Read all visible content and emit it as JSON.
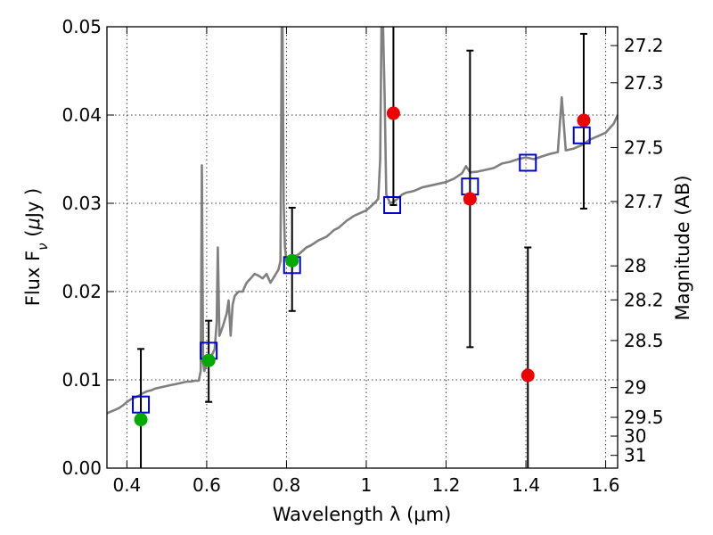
{
  "chart_data": {
    "type": "scatter",
    "title": "",
    "xlabel": "Wavelength  λ (μm)",
    "ylabel": "Flux  F",
    "ylabel_sub": "ν",
    "ylabel_unit_open": "  (",
    "ylabel_unit_mu": "μ",
    "ylabel_unit_close": "Jy )",
    "y2label": "Magnitude (AB)",
    "xlim": [
      0.35,
      1.63
    ],
    "ylim": [
      0.0,
      0.05
    ],
    "grid": true,
    "x_ticks": [
      0.4,
      0.6,
      0.8,
      1.0,
      1.2,
      1.4,
      1.6
    ],
    "x_tick_labels": [
      "0.4",
      "0.6",
      "0.8",
      "1",
      "1.2",
      "1.4",
      "1.6"
    ],
    "y_ticks": [
      0.0,
      0.01,
      0.02,
      0.03,
      0.04,
      0.05
    ],
    "y_tick_labels": [
      "0.00",
      "0.01",
      "0.02",
      "0.03",
      "0.04",
      "0.05"
    ],
    "y2_ticks": [
      27.2,
      27.3,
      27.5,
      27.7,
      28,
      28.2,
      28.5,
      29,
      29.5,
      30,
      31
    ],
    "y2_tick_labels": [
      "27.2",
      "27.3",
      "27.5",
      "27.7",
      "28",
      "28.2",
      "28.5",
      "29",
      "29.5",
      "30",
      "31"
    ],
    "colors": {
      "spectrum": "#808080",
      "model_boxes": "#0000cc",
      "green_points": "#00aa00",
      "red_points": "#ee0000",
      "errorbars": "#000000"
    },
    "series": [
      {
        "name": "model spectrum",
        "kind": "line",
        "x": [
          0.35,
          0.36,
          0.37,
          0.38,
          0.39,
          0.4,
          0.41,
          0.42,
          0.43,
          0.44,
          0.45,
          0.46,
          0.47,
          0.48,
          0.49,
          0.5,
          0.51,
          0.52,
          0.53,
          0.54,
          0.55,
          0.56,
          0.57,
          0.58,
          0.585,
          0.588,
          0.591,
          0.594,
          0.6,
          0.61,
          0.62,
          0.625,
          0.628,
          0.632,
          0.64,
          0.65,
          0.655,
          0.66,
          0.665,
          0.67,
          0.68,
          0.69,
          0.7,
          0.71,
          0.72,
          0.73,
          0.74,
          0.75,
          0.76,
          0.78,
          0.785,
          0.788,
          0.79,
          0.793,
          0.796,
          0.8,
          0.81,
          0.82,
          0.83,
          0.84,
          0.85,
          0.86,
          0.87,
          0.88,
          0.89,
          0.9,
          0.91,
          0.92,
          0.93,
          0.94,
          0.95,
          0.96,
          0.97,
          0.98,
          0.99,
          1.0,
          1.01,
          1.02,
          1.03,
          1.035,
          1.038,
          1.042,
          1.046,
          1.05,
          1.055,
          1.06,
          1.07,
          1.08,
          1.09,
          1.1,
          1.12,
          1.14,
          1.16,
          1.18,
          1.2,
          1.22,
          1.24,
          1.25,
          1.26,
          1.28,
          1.3,
          1.32,
          1.34,
          1.36,
          1.38,
          1.4,
          1.42,
          1.44,
          1.46,
          1.48,
          1.49,
          1.5,
          1.52,
          1.54,
          1.56,
          1.58,
          1.6,
          1.62,
          1.63
        ],
        "y": [
          0.0062,
          0.0064,
          0.0066,
          0.0068,
          0.0071,
          0.0075,
          0.0078,
          0.008,
          0.0082,
          0.0085,
          0.0087,
          0.0088,
          0.009,
          0.0091,
          0.0092,
          0.0093,
          0.0094,
          0.0095,
          0.0096,
          0.0097,
          0.0098,
          0.0098,
          0.0099,
          0.0099,
          0.011,
          0.0343,
          0.012,
          0.011,
          0.0118,
          0.0125,
          0.0135,
          0.0165,
          0.025,
          0.015,
          0.016,
          0.0175,
          0.019,
          0.015,
          0.0185,
          0.0195,
          0.02,
          0.02,
          0.021,
          0.0215,
          0.022,
          0.0218,
          0.0215,
          0.022,
          0.021,
          0.0225,
          0.0235,
          0.05,
          0.05,
          0.03,
          0.025,
          0.0235,
          0.0238,
          0.024,
          0.0242,
          0.0246,
          0.025,
          0.0252,
          0.0255,
          0.0258,
          0.026,
          0.0262,
          0.0266,
          0.027,
          0.0272,
          0.0276,
          0.028,
          0.0283,
          0.0286,
          0.0288,
          0.029,
          0.0292,
          0.0296,
          0.03,
          0.0305,
          0.035,
          0.05,
          0.05,
          0.042,
          0.031,
          0.0305,
          0.03,
          0.0302,
          0.0306,
          0.031,
          0.0312,
          0.0314,
          0.0318,
          0.032,
          0.0322,
          0.0324,
          0.0328,
          0.0334,
          0.0342,
          0.0335,
          0.0336,
          0.0338,
          0.034,
          0.0345,
          0.0347,
          0.035,
          0.0352,
          0.035,
          0.0353,
          0.0356,
          0.0358,
          0.042,
          0.036,
          0.0362,
          0.0366,
          0.0372,
          0.0376,
          0.038,
          0.039,
          0.04
        ]
      },
      {
        "name": "model photometry",
        "kind": "squares",
        "x": [
          0.435,
          0.605,
          0.814,
          1.065,
          1.26,
          1.405,
          1.54
        ],
        "y": [
          0.0072,
          0.0133,
          0.023,
          0.0298,
          0.0319,
          0.0346,
          0.0377
        ]
      },
      {
        "name": "detections",
        "kind": "points",
        "x": [
          0.435,
          0.605,
          0.814
        ],
        "y": [
          0.0055,
          0.0122,
          0.0235
        ],
        "yerr_low": [
          0.0055,
          0.0047,
          0.0057
        ],
        "yerr_high": [
          0.008,
          0.0045,
          0.006
        ]
      },
      {
        "name": "non-detections",
        "kind": "points",
        "x": [
          1.068,
          1.26,
          1.405,
          1.545
        ],
        "y": [
          0.0402,
          0.0305,
          0.0105,
          0.0394
        ],
        "yerr_low": [
          0.0104,
          0.0168,
          0.0105,
          0.01
        ],
        "yerr_high": [
          0.0098,
          0.0168,
          0.0145,
          0.0098
        ]
      }
    ]
  }
}
